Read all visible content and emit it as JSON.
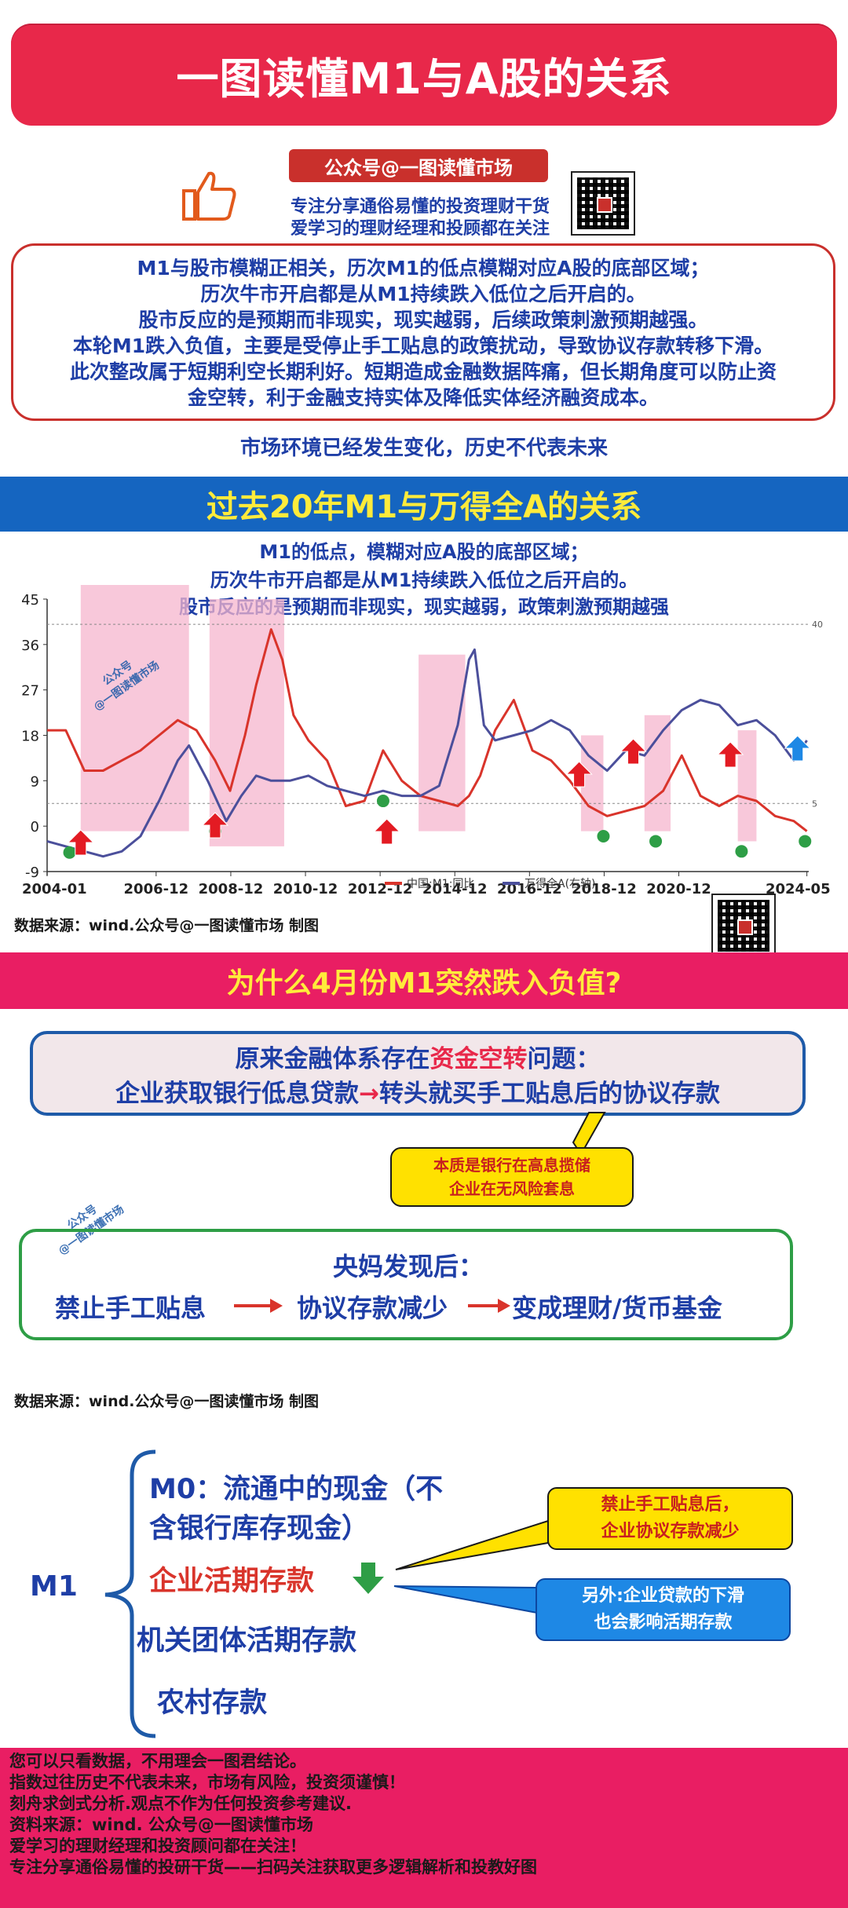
{
  "header": {
    "title": "一图读懂M1与A股的关系"
  },
  "account": {
    "badge": "公众号@一图读懂市场",
    "tagline1": "专注分享通俗易懂的投资理财干货",
    "tagline2": "爱学习的理财经理和投顾都在关注"
  },
  "summary": {
    "lines": [
      "M1与股市模糊正相关，历次M1的低点模糊对应A股的底部区域；",
      "历次牛市开启都是从M1持续跌入低位之后开启的。",
      "股市反应的是预期而非现实，现实越弱，后续政策刺激预期越强。",
      "本轮M1跌入负值，主要是受停止手工贴息的政策扰动，导致协议存款转移下滑。",
      "此次整改属于短期利空长期利好。短期造成金融数据阵痛，但长期角度可以防止资",
      "金空转，利于金融支持实体及降低实体经济融资成本。"
    ],
    "disclaimer": "市场环境已经发生变化，历史不代表未来"
  },
  "section1": {
    "title": "过去20年M1与万得全A的关系",
    "sub1": "M1的低点，模糊对应A股的底部区域；",
    "sub2": "历次牛市开启都是从M1持续跌入低位之后开启的。",
    "sub3": "股市反应的是预期而非现实，现实越弱，政策刺激预期越强",
    "source": "数据来源：wind.公众号@一图读懂市场 制图",
    "watermark1": "公众号",
    "watermark2": "@一图读懂市场"
  },
  "chart_data": {
    "type": "line",
    "x_ticks": [
      "2004-01",
      "2006-12",
      "2008-12",
      "2010-12",
      "2012-12",
      "2014-12",
      "2016-12",
      "2018-12",
      "2020-12",
      "2024-05"
    ],
    "y_left_ticks": [
      "-9",
      "0",
      "9",
      "18",
      "27",
      "36",
      "45"
    ],
    "y_right_ticks": [
      "40",
      "5"
    ],
    "ylim": [
      -9,
      45
    ],
    "series": [
      {
        "name": "中国:M1:同比",
        "color": "#d9342b",
        "x": [
          2004.0,
          2004.5,
          2005.0,
          2005.5,
          2006.0,
          2006.5,
          2007.0,
          2007.5,
          2008.0,
          2008.5,
          2008.9,
          2009.3,
          2009.6,
          2010.0,
          2010.3,
          2010.6,
          2011.0,
          2011.5,
          2012.0,
          2012.5,
          2013.0,
          2013.5,
          2014.0,
          2014.5,
          2015.0,
          2015.3,
          2015.6,
          2016.0,
          2016.5,
          2017.0,
          2017.5,
          2018.0,
          2018.5,
          2019.0,
          2019.5,
          2020.0,
          2020.5,
          2021.0,
          2021.5,
          2022.0,
          2022.5,
          2023.0,
          2023.5,
          2024.0,
          2024.35
        ],
        "values": [
          19,
          19,
          11,
          11,
          13,
          15,
          18,
          21,
          19,
          13,
          7,
          18,
          28,
          39,
          33,
          22,
          17,
          13,
          4,
          5,
          15,
          9,
          6,
          5,
          4,
          6,
          10,
          19,
          25,
          15,
          13,
          9,
          4,
          2,
          3,
          4,
          7,
          14,
          6,
          4,
          6,
          5,
          2,
          1,
          -1
        ]
      },
      {
        "name": "万得全A(右轴)",
        "color": "#4b4f9b",
        "x": [
          2004.0,
          2004.5,
          2005.0,
          2005.5,
          2006.0,
          2006.5,
          2007.0,
          2007.5,
          2007.8,
          2008.3,
          2008.8,
          2009.2,
          2009.6,
          2010.0,
          2010.5,
          2011.0,
          2011.5,
          2012.0,
          2012.5,
          2013.0,
          2013.5,
          2014.0,
          2014.5,
          2015.0,
          2015.3,
          2015.45,
          2015.7,
          2016.0,
          2016.5,
          2017.0,
          2017.5,
          2018.0,
          2018.5,
          2019.0,
          2019.5,
          2020.0,
          2020.5,
          2021.0,
          2021.5,
          2022.0,
          2022.5,
          2023.0,
          2023.5,
          2024.0,
          2024.35
        ],
        "values": [
          -3,
          -4,
          -5,
          -6,
          -5,
          -2,
          5,
          13,
          16,
          9,
          1,
          6,
          10,
          9,
          9,
          10,
          8,
          7,
          6,
          7,
          6,
          6,
          8,
          20,
          33,
          35,
          20,
          17,
          18,
          19,
          21,
          19,
          14,
          11,
          15,
          14,
          19,
          23,
          25,
          24,
          20,
          21,
          18,
          13,
          17
        ]
      }
    ],
    "legend_position": "bottom-right"
  },
  "section2": {
    "title": "为什么4月份M1突然跌入负值?",
    "q_line1_pre": "原来金融体系存在",
    "q_line1_hl": "资金空转",
    "q_line1_post": "问题：",
    "q_line2_a": "企业获取银行低息贷款",
    "q_line2_arrow": "→",
    "q_line2_b": "转头就买手工贴息后的协议存款",
    "callout1": "本质是银行在高息揽储",
    "callout2": "企业在无风险套息",
    "box_title": "央妈发现后：",
    "flow1": "禁止手工贴息",
    "flow2": "协议存款减少",
    "flow3": "变成理财/货币基金",
    "source": "数据来源：wind.公众号@一图读懂市场 制图"
  },
  "m1": {
    "label": "M1",
    "item1a": "M0：流通中的现金（不",
    "item1b": "含银行库存现金）",
    "item2": "企业活期存款",
    "item3": "机关团体活期存款",
    "item4": "农村存款",
    "callout_y1": "禁止手工贴息后，",
    "callout_y2": "企业协议存款减少",
    "callout_b1": "另外:企业贷款的下滑",
    "callout_b2": "也会影响活期存款"
  },
  "footer": {
    "lines": [
      "您可以只看数据，不用理会一图君结论。",
      "指数过往历史不代表未来，市场有风险，投资须谨慎！",
      "刻舟求剑式分析.观点不作为任何投资参考建议.",
      "资料来源：wind.  公众号@一图读懂市场",
      "爱学习的理财经理和投资顾问都在关注！",
      "专注分享通俗易懂的投研干货——扫码关注获取更多逻辑解析和投教好图"
    ]
  },
  "colors": {
    "red": "#e8284a",
    "blue": "#1565c0",
    "pink": "#e91e63",
    "yellow": "#ffeb3b",
    "green": "#2e9e46"
  }
}
